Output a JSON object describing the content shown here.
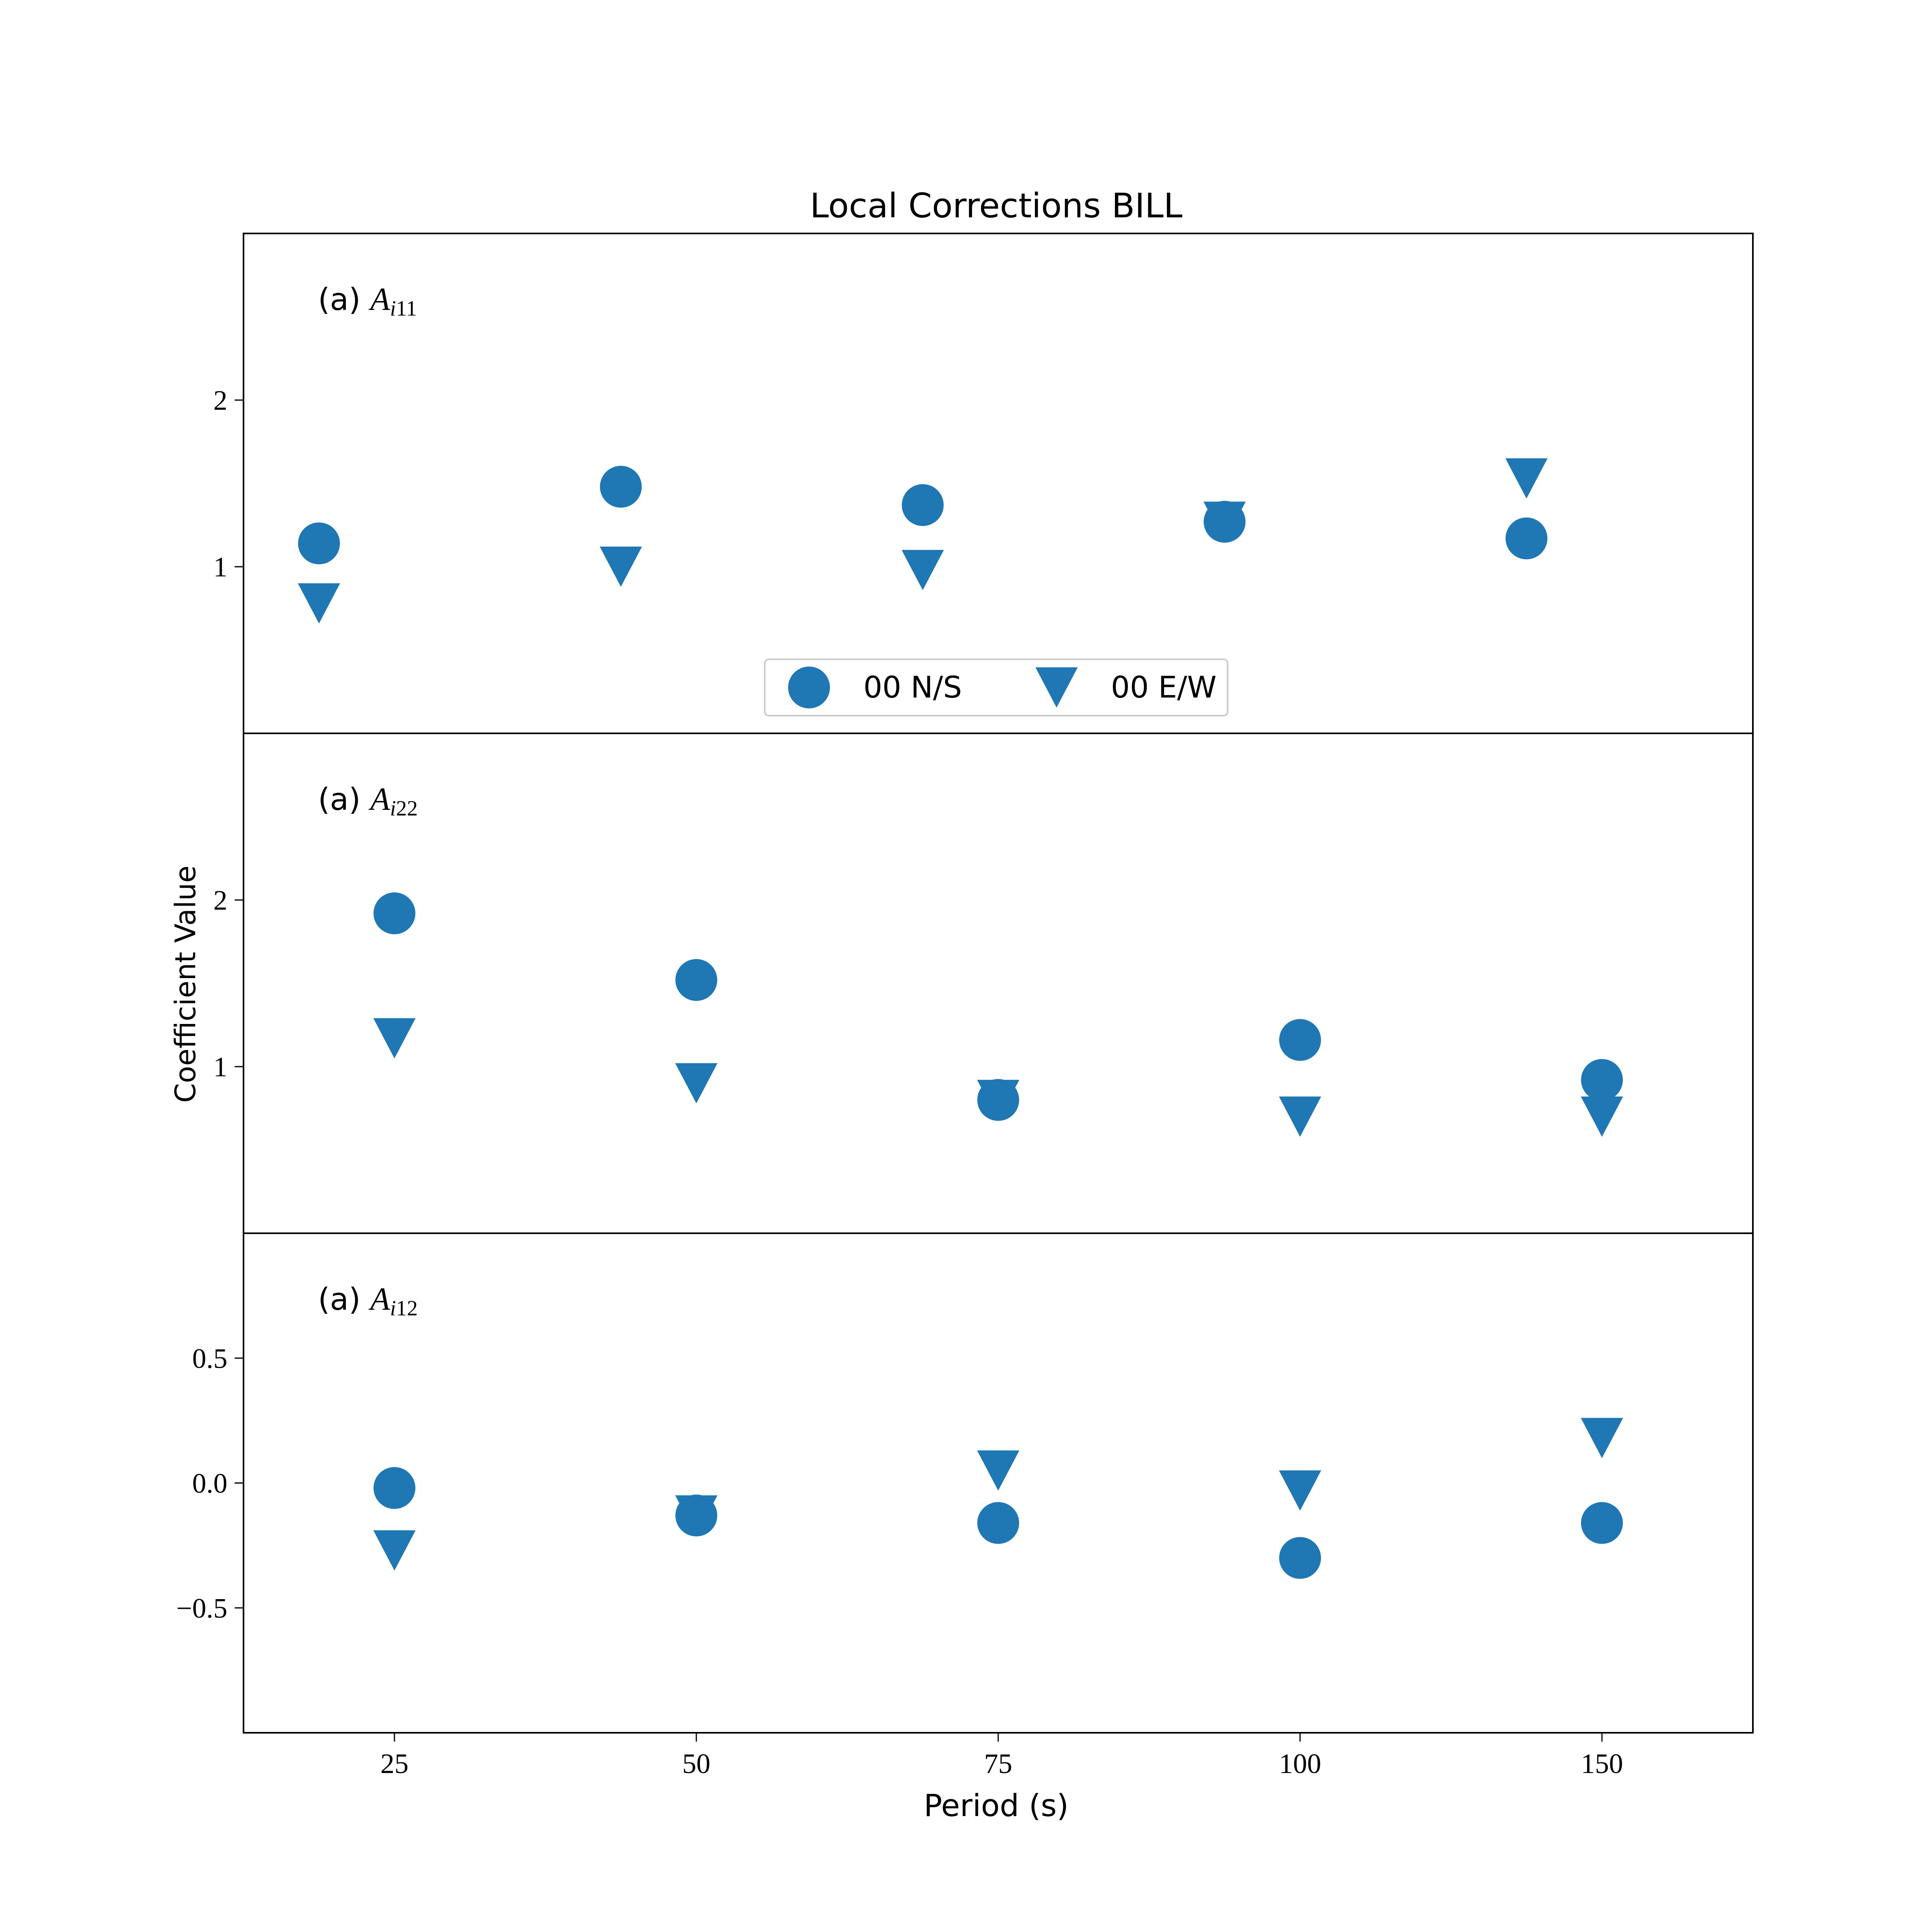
{
  "chart_data": {
    "type": "scatter",
    "title": "Local Corrections BILL",
    "xlabel": "Period (s)",
    "ylabel": "Coefficient Value",
    "categories": [
      "25",
      "50",
      "75",
      "100",
      "150"
    ],
    "legend": {
      "placement": "upper panel, bottom center",
      "entries": [
        "00 N/S",
        "00 E/W"
      ]
    },
    "colors": {
      "series": "#1f77b4",
      "frame": "#000000"
    },
    "series_markers": {
      "00 N/S": "circle",
      "00 E/W": "triangle-down"
    },
    "panels": [
      {
        "label_prefix": "(a)",
        "label_var": "A",
        "label_sub": "i11",
        "ylim": [
          0,
          3
        ],
        "yticks": [
          1,
          2
        ],
        "ytick_labels": [
          "1",
          "2"
        ],
        "x_offset_fraction": -0.25,
        "series": [
          {
            "name": "00 N/S",
            "values": [
              1.14,
              1.48,
              1.37,
              1.27,
              1.17
            ]
          },
          {
            "name": "00 E/W",
            "values": [
              0.78,
              1.0,
              0.98,
              1.27,
              1.53
            ]
          }
        ]
      },
      {
        "label_prefix": "(a)",
        "label_var": "A",
        "label_sub": "i22",
        "ylim": [
          0,
          3
        ],
        "yticks": [
          1,
          2
        ],
        "ytick_labels": [
          "1",
          "2"
        ],
        "x_offset_fraction": 0,
        "series": [
          {
            "name": "00 N/S",
            "values": [
              1.92,
              1.52,
              0.8,
              1.16,
              0.92
            ]
          },
          {
            "name": "00 E/W",
            "values": [
              1.17,
              0.9,
              0.8,
              0.7,
              0.7
            ]
          }
        ]
      },
      {
        "label_prefix": "(a)",
        "label_var": "A",
        "label_sub": "i12",
        "ylim": [
          -1,
          1
        ],
        "yticks": [
          -0.5,
          0.0,
          0.5
        ],
        "ytick_labels": [
          "−0.5",
          "0.0",
          "0.5"
        ],
        "x_offset_fraction": 0,
        "series": [
          {
            "name": "00 N/S",
            "values": [
              -0.02,
              -0.13,
              -0.16,
              -0.3,
              -0.16
            ]
          },
          {
            "name": "00 E/W",
            "values": [
              -0.27,
              -0.13,
              0.05,
              -0.03,
              0.18
            ]
          }
        ]
      }
    ]
  }
}
